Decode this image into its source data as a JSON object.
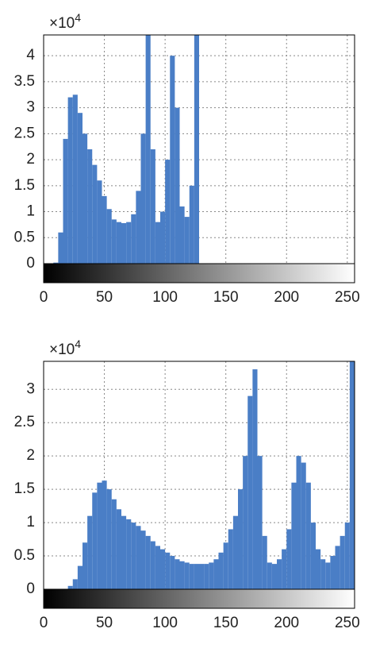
{
  "chart_data": [
    {
      "type": "histogram",
      "multiplier": "×10",
      "multiplier_exponent": "4",
      "color": "#4a7ec6",
      "grid": true,
      "bins": [
        0,
        4,
        8,
        12,
        16,
        20,
        24,
        28,
        32,
        36,
        40,
        44,
        48,
        52,
        56,
        60,
        64,
        68,
        72,
        76,
        80,
        84,
        88,
        92,
        96,
        100,
        104,
        108,
        112,
        116,
        120,
        124,
        128,
        132,
        136,
        140,
        144,
        148,
        152,
        156,
        160,
        164,
        168,
        172,
        176,
        180,
        184,
        188,
        192,
        196,
        200,
        204,
        208,
        212,
        216,
        220,
        224,
        228,
        232,
        236,
        240,
        244,
        248,
        252,
        256
      ],
      "values": [
        0,
        0,
        0.02,
        0.6,
        2.4,
        3.2,
        3.25,
        2.9,
        2.5,
        2.2,
        1.9,
        1.6,
        1.3,
        1.05,
        0.85,
        0.8,
        0.78,
        0.8,
        0.95,
        1.4,
        2.5,
        4.4,
        2.2,
        0.8,
        1.0,
        2.0,
        4.0,
        3.0,
        1.1,
        0.9,
        1.5,
        4.4,
        0,
        0,
        0,
        0,
        0,
        0,
        0,
        0,
        0,
        0,
        0,
        0,
        0,
        0,
        0,
        0,
        0,
        0,
        0,
        0,
        0,
        0,
        0,
        0,
        0,
        0,
        0,
        0,
        0,
        0,
        0,
        0
      ],
      "xlim": [
        0,
        256
      ],
      "ylim": [
        0,
        4.4
      ],
      "xticks": [
        0,
        50,
        100,
        150,
        200,
        250
      ],
      "yticks": [
        0,
        0.5,
        1,
        1.5,
        2,
        2.5,
        3,
        3.5,
        4
      ]
    },
    {
      "type": "histogram",
      "multiplier": "×10",
      "multiplier_exponent": "4",
      "color": "#4a7ec6",
      "grid": true,
      "bins": [
        0,
        4,
        8,
        12,
        16,
        20,
        24,
        28,
        32,
        36,
        40,
        44,
        48,
        52,
        56,
        60,
        64,
        68,
        72,
        76,
        80,
        84,
        88,
        92,
        96,
        100,
        104,
        108,
        112,
        116,
        120,
        124,
        128,
        132,
        136,
        140,
        144,
        148,
        152,
        156,
        160,
        164,
        168,
        172,
        176,
        180,
        184,
        188,
        192,
        196,
        200,
        204,
        208,
        212,
        216,
        220,
        224,
        228,
        232,
        236,
        240,
        244,
        248,
        252,
        256
      ],
      "values": [
        0,
        0,
        0,
        0,
        0,
        0.05,
        0.15,
        0.35,
        0.7,
        1.1,
        1.45,
        1.6,
        1.63,
        1.5,
        1.35,
        1.2,
        1.1,
        1.05,
        1.0,
        0.95,
        0.88,
        0.8,
        0.72,
        0.65,
        0.6,
        0.55,
        0.5,
        0.45,
        0.42,
        0.4,
        0.38,
        0.38,
        0.38,
        0.38,
        0.4,
        0.45,
        0.55,
        0.7,
        0.9,
        1.1,
        1.5,
        2.0,
        2.9,
        3.3,
        2.0,
        0.8,
        0.4,
        0.38,
        0.45,
        0.6,
        0.9,
        1.6,
        2.0,
        1.9,
        1.6,
        1.0,
        0.6,
        0.45,
        0.4,
        0.5,
        0.65,
        0.8,
        1.0,
        3.42
      ],
      "xlim": [
        0,
        256
      ],
      "ylim": [
        0,
        3.42
      ],
      "xticks": [
        0,
        50,
        100,
        150,
        200,
        250
      ],
      "yticks": [
        0,
        0.5,
        1,
        1.5,
        2,
        2.5,
        3
      ]
    }
  ]
}
